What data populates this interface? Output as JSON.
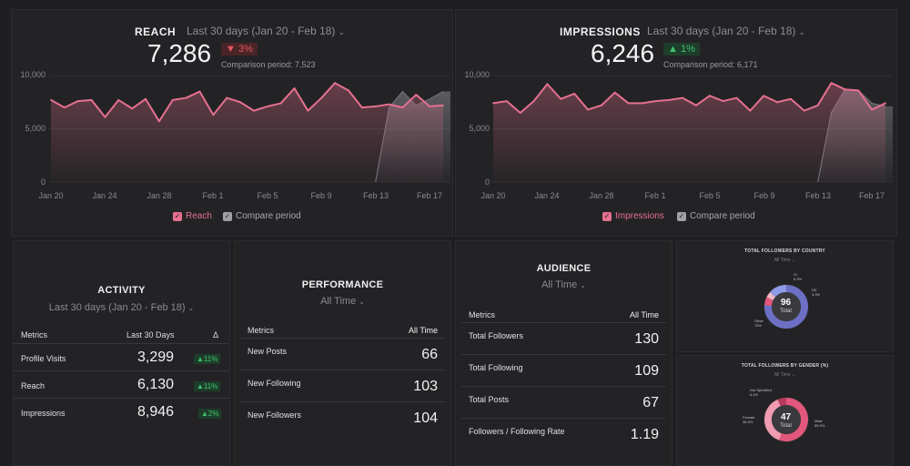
{
  "reach": {
    "title": "REACH",
    "range": "Last 30 days (Jan 20 - Feb 18)",
    "value": "7,286",
    "delta": "3%",
    "delta_dir": "down",
    "comparison": "Comparison period: 7,523",
    "legend_main": "Reach",
    "legend_compare": "Compare period"
  },
  "impressions": {
    "title": "IMPRESSIONS",
    "range": "Last 30 days (Jan 20 - Feb 18)",
    "value": "6,246",
    "delta": "1%",
    "delta_dir": "up",
    "comparison": "Comparison period: 6,171",
    "legend_main": "Impressions",
    "legend_compare": "Compare period"
  },
  "chart_data": [
    {
      "type": "area",
      "x": [
        "Jan 20",
        "Jan 21",
        "Jan 22",
        "Jan 23",
        "Jan 24",
        "Jan 25",
        "Jan 26",
        "Jan 27",
        "Jan 28",
        "Jan 29",
        "Jan 30",
        "Jan 31",
        "Feb 1",
        "Feb 2",
        "Feb 3",
        "Feb 4",
        "Feb 5",
        "Feb 6",
        "Feb 7",
        "Feb 8",
        "Feb 9",
        "Feb 10",
        "Feb 11",
        "Feb 12",
        "Feb 13",
        "Feb 14",
        "Feb 15",
        "Feb 16",
        "Feb 17",
        "Feb 18"
      ],
      "x_ticks": [
        "Jan 20",
        "Jan 24",
        "Jan 28",
        "Feb 1",
        "Feb 5",
        "Feb 9",
        "Feb 13",
        "Feb 17"
      ],
      "y_ticks": [
        "10,000",
        "5,000",
        "0"
      ],
      "ylim": [
        0,
        10000
      ],
      "series": [
        {
          "name": "Reach",
          "values": [
            7700,
            7000,
            7600,
            7700,
            6100,
            7700,
            6900,
            7800,
            5700,
            7700,
            7900,
            8500,
            6300,
            7900,
            7500,
            6700,
            7100,
            7400,
            8800,
            6700,
            7900,
            9300,
            8600,
            7000,
            7100,
            7300,
            7000,
            8200,
            7100,
            7200
          ]
        },
        {
          "name": "Compare period",
          "values": [
            null,
            null,
            null,
            null,
            null,
            null,
            null,
            null,
            null,
            null,
            null,
            null,
            null,
            null,
            null,
            null,
            null,
            null,
            null,
            null,
            null,
            null,
            null,
            null,
            0,
            7000,
            8500,
            7200,
            7800,
            8500
          ]
        }
      ]
    },
    {
      "type": "area",
      "x": [
        "Jan 20",
        "Jan 21",
        "Jan 22",
        "Jan 23",
        "Jan 24",
        "Jan 25",
        "Jan 26",
        "Jan 27",
        "Jan 28",
        "Jan 29",
        "Jan 30",
        "Jan 31",
        "Feb 1",
        "Feb 2",
        "Feb 3",
        "Feb 4",
        "Feb 5",
        "Feb 6",
        "Feb 7",
        "Feb 8",
        "Feb 9",
        "Feb 10",
        "Feb 11",
        "Feb 12",
        "Feb 13",
        "Feb 14",
        "Feb 15",
        "Feb 16",
        "Feb 17",
        "Feb 18"
      ],
      "x_ticks": [
        "Jan 20",
        "Jan 24",
        "Jan 28",
        "Feb 1",
        "Feb 5",
        "Feb 9",
        "Feb 13",
        "Feb 17"
      ],
      "y_ticks": [
        "10,000",
        "5,000",
        "0"
      ],
      "ylim": [
        0,
        10000
      ],
      "series": [
        {
          "name": "Impressions",
          "values": [
            7400,
            7600,
            6500,
            7600,
            9200,
            7800,
            8300,
            6800,
            7200,
            8400,
            7400,
            7400,
            7600,
            7700,
            7900,
            7200,
            8100,
            7600,
            7900,
            6700,
            8100,
            7500,
            7800,
            6700,
            7200,
            9300,
            8700,
            8600,
            6800,
            7400
          ]
        },
        {
          "name": "Compare period",
          "values": [
            null,
            null,
            null,
            null,
            null,
            null,
            null,
            null,
            null,
            null,
            null,
            null,
            null,
            null,
            null,
            null,
            null,
            null,
            null,
            null,
            null,
            null,
            null,
            null,
            0,
            6500,
            8700,
            8600,
            7400,
            7100
          ]
        }
      ]
    },
    {
      "type": "pie",
      "title": "TOTAL FOLLOWERS BY COUNTRY",
      "subtitle": "All Time",
      "center_value": "96",
      "center_label": "Total",
      "slices": [
        {
          "label": "Other",
          "pct": "76%",
          "value": 76,
          "color": "#6d6fc4"
        },
        {
          "label": "SI",
          "pct": "6.3%",
          "value": 6.3,
          "color": "#e2577c"
        },
        {
          "label": "DE",
          "pct": "4.3%",
          "value": 4.3,
          "color": "#f0b8c6"
        },
        {
          "label": "",
          "pct": "",
          "value": 13.4,
          "color": "#8e9be6"
        }
      ]
    },
    {
      "type": "pie",
      "title": "TOTAL FOLLOWERS BY GENDER (%)",
      "subtitle": "All Time",
      "center_value": "47",
      "center_label": "Total",
      "slices": [
        {
          "label": "Male",
          "pct": "55.3%",
          "value": 55.3,
          "color": "#e2577c"
        },
        {
          "label": "Female",
          "pct": "38.3%",
          "value": 38.3,
          "color": "#f09bb2"
        },
        {
          "label": "Not Specified",
          "pct": "6.4%",
          "value": 6.4,
          "color": "#b73b5c"
        }
      ]
    }
  ],
  "activity": {
    "title": "ACTIVITY",
    "range": "Last 30 days (Jan 20 - Feb 18)",
    "col_metric": "Metrics",
    "col_value": "Last 30 Days",
    "col_delta": "Δ",
    "rows": [
      {
        "label": "Profile Visits",
        "value": "3,299",
        "delta": "11%"
      },
      {
        "label": "Reach",
        "value": "6,130",
        "delta": "11%"
      },
      {
        "label": "Impressions",
        "value": "8,946",
        "delta": "2%"
      }
    ]
  },
  "performance": {
    "title": "PERFORMANCE",
    "range": "All Time",
    "col_metric": "Metrics",
    "col_value": "All Time",
    "rows": [
      {
        "label": "New Posts",
        "value": "66"
      },
      {
        "label": "New Following",
        "value": "103"
      },
      {
        "label": "New Followers",
        "value": "104"
      }
    ]
  },
  "audience": {
    "title": "AUDIENCE",
    "range": "All Time",
    "col_metric": "Metrics",
    "col_value": "All Time",
    "rows": [
      {
        "label": "Total Followers",
        "value": "130"
      },
      {
        "label": "Total Following",
        "value": "109"
      },
      {
        "label": "Total Posts",
        "value": "67"
      },
      {
        "label": "Followers / Following Rate",
        "value": "1.19"
      }
    ]
  },
  "icons": {
    "dropdown": "chevron-down-icon",
    "down": "triangle-down-icon",
    "up": "triangle-up-icon",
    "check": "checkbox-check-icon"
  },
  "colors": {
    "accent": "#e5708f",
    "compare": "#a0a0a6",
    "background": "#1f1f21",
    "panel": "#232325"
  }
}
